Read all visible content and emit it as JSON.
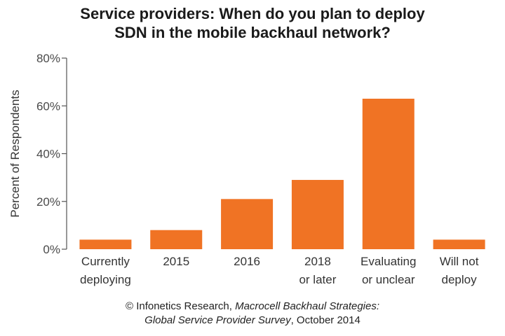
{
  "title": {
    "line1": "Service providers: When do you plan to deploy",
    "line2": "SDN in the mobile backhaul network?"
  },
  "footer": {
    "line1_prefix": "© Infonetics Research, ",
    "line1_italic": "Macrocell Backhaul Strategies:",
    "line2_italic": "Global Service Provider Survey",
    "line2_suffix": ", October 2014"
  },
  "colors": {
    "bar": "#f07324",
    "axis": "#555555"
  },
  "chart_data": {
    "type": "bar",
    "title": "Service providers: When do you plan to deploy SDN in the mobile backhaul network?",
    "ylabel": "Percent of Respondents",
    "xlabel": "",
    "categories": [
      [
        "Currently",
        "deploying"
      ],
      [
        "2015"
      ],
      [
        "2016"
      ],
      [
        "2018",
        "or later"
      ],
      [
        "Evaluating",
        "or unclear"
      ],
      [
        "Will not",
        "deploy"
      ]
    ],
    "values": [
      4,
      8,
      21,
      29,
      63,
      4
    ],
    "ylim": [
      0,
      80
    ],
    "yticks": [
      0,
      20,
      40,
      60,
      80
    ],
    "ytick_labels": [
      "0%",
      "20%",
      "40%",
      "60%",
      "80%"
    ],
    "grid": false,
    "legend": "none"
  }
}
